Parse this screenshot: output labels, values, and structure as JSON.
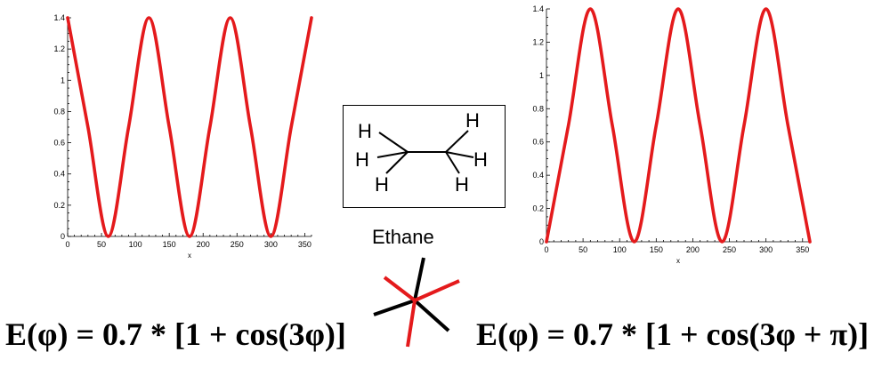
{
  "chart_data": [
    {
      "type": "line",
      "title": "",
      "xlabel": "x",
      "ylabel": "",
      "xlim": [
        0,
        360
      ],
      "ylim": [
        0,
        1.4
      ],
      "xticks": [
        "0",
        "50",
        "100",
        "150",
        "200",
        "250",
        "300",
        "350"
      ],
      "yticks": [
        "0",
        "0.2",
        "0.4",
        "0.6",
        "0.8",
        "1",
        "1.2",
        "1.4"
      ],
      "grid": false,
      "series": [
        {
          "color": "#e41a1c",
          "x": [
            0,
            30,
            60,
            90,
            120,
            150,
            180,
            210,
            240,
            270,
            300,
            330,
            360
          ],
          "values": [
            1.4,
            0.7,
            0.0,
            0.7,
            1.4,
            0.7,
            0.0,
            0.7,
            1.4,
            0.7,
            0.0,
            0.7,
            1.4
          ]
        }
      ]
    },
    {
      "type": "line",
      "title": "",
      "xlabel": "x",
      "ylabel": "",
      "xlim": [
        0,
        360
      ],
      "ylim": [
        0,
        1.4
      ],
      "xticks": [
        "0",
        "50",
        "100",
        "150",
        "200",
        "250",
        "300",
        "350"
      ],
      "yticks": [
        "0",
        "0.2",
        "0.4",
        "0.6",
        "0.8",
        "1",
        "1.2",
        "1.4"
      ],
      "grid": false,
      "series": [
        {
          "color": "#e41a1c",
          "x": [
            0,
            30,
            60,
            90,
            120,
            150,
            180,
            210,
            240,
            270,
            300,
            330,
            360
          ],
          "values": [
            0.0,
            0.7,
            1.4,
            0.7,
            0.0,
            0.7,
            1.4,
            0.7,
            0.0,
            0.7,
            1.4,
            0.7,
            0.0
          ]
        }
      ]
    }
  ],
  "molecule": {
    "name": "Ethane",
    "atom_label": "H",
    "bond_color": "#000000",
    "front_bond_color": "#e41a1c",
    "back_bond_color": "#000000"
  },
  "equations": {
    "left": "E(φ) = 0.7 * [1 + cos(3φ)]",
    "right": "E(φ) = 0.7 * [1 + cos(3φ + π)]"
  }
}
